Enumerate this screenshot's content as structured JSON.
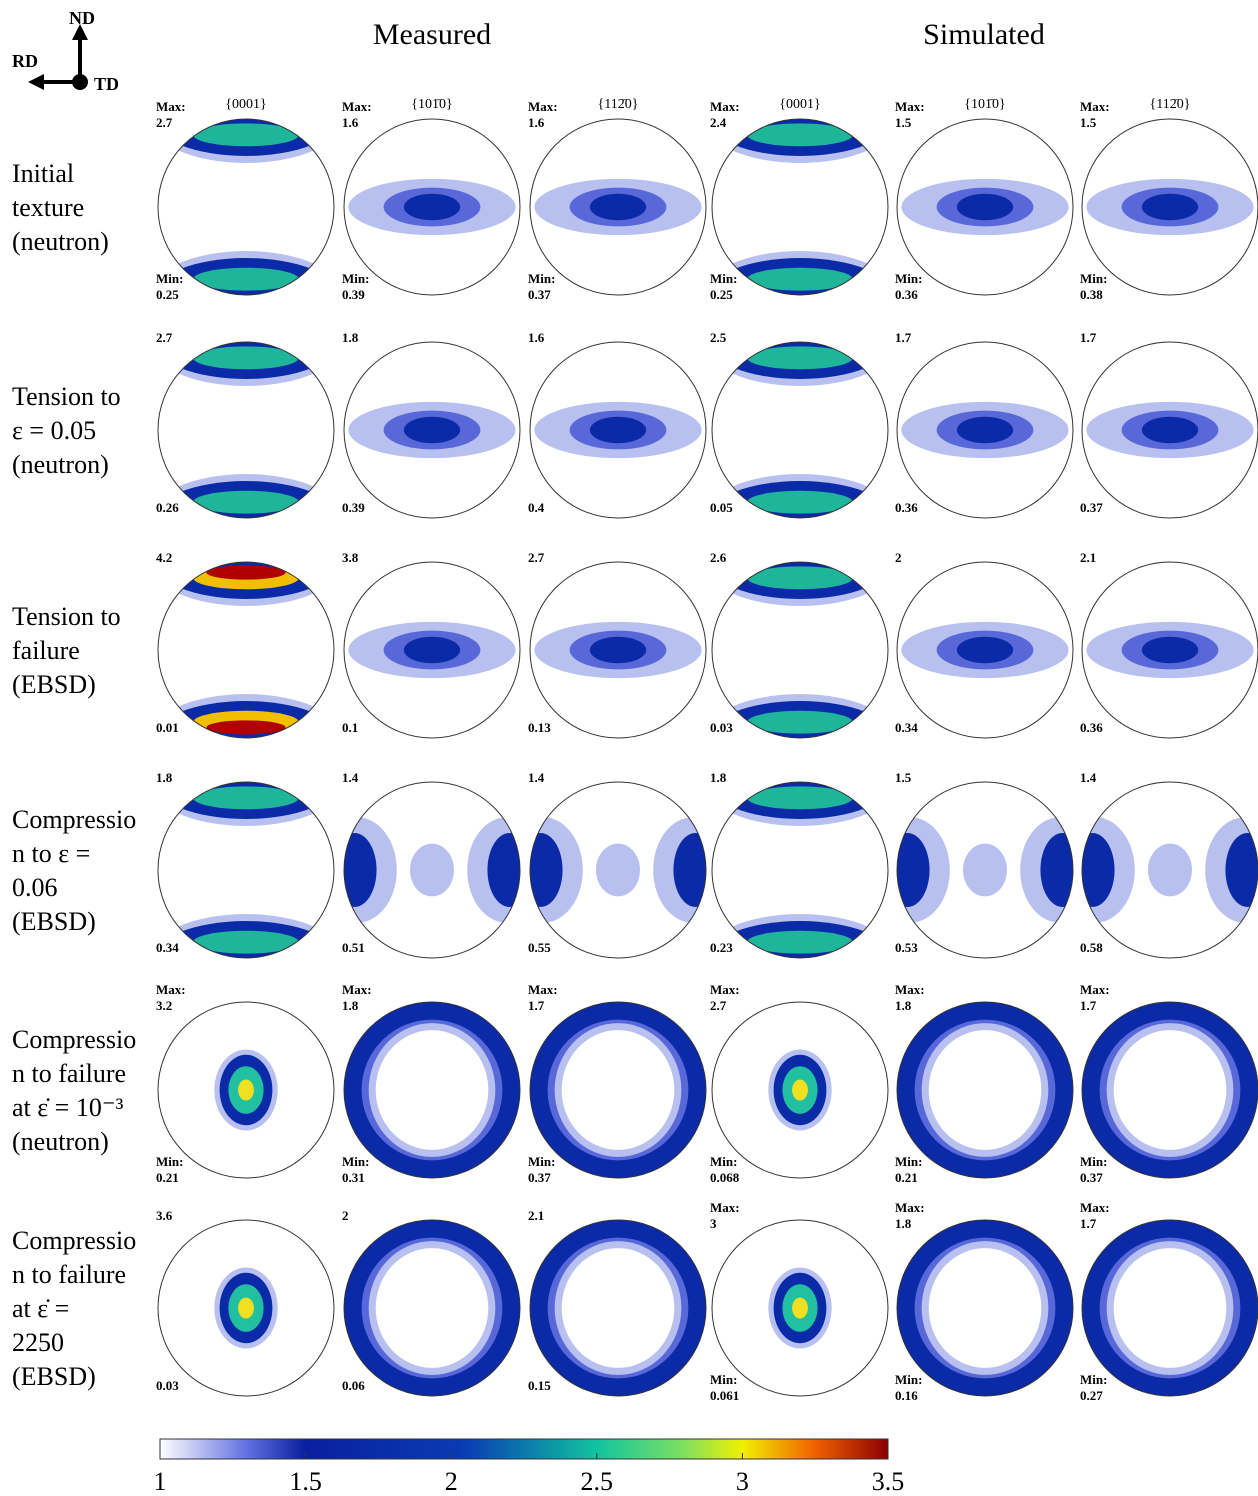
{
  "orientation": {
    "nd": "ND",
    "rd": "RD",
    "td": "TD"
  },
  "groups": [
    "Measured",
    "Simulated"
  ],
  "pole_labels": [
    "{0001}",
    "{101̄0}",
    "{112̄0}",
    "{0001}",
    "{101̄0}",
    "{112̄0}"
  ],
  "rows": [
    {
      "label": [
        "Initial",
        "texture",
        "(neutron)"
      ],
      "panels": [
        {
          "max_label": "Max:",
          "max": 2.7,
          "min_label": "Min:",
          "min": 0.25
        },
        {
          "max_label": "Max:",
          "max": 1.6,
          "min_label": "Min:",
          "min": 0.39
        },
        {
          "max_label": "Max:",
          "max": 1.6,
          "min_label": "Min:",
          "min": 0.37
        },
        {
          "max_label": "Max:",
          "max": 2.4,
          "min_label": "Min:",
          "min": 0.25
        },
        {
          "max_label": "Max:",
          "max": 1.5,
          "min_label": "Min:",
          "min": 0.36
        },
        {
          "max_label": "Max:",
          "max": 1.5,
          "min_label": "Min:",
          "min": 0.38
        }
      ]
    },
    {
      "label": [
        "Tension to",
        "ε = 0.05",
        "(neutron)"
      ],
      "panels": [
        {
          "max": 2.7,
          "min": 0.26
        },
        {
          "max": 1.8,
          "min": 0.39
        },
        {
          "max": 1.6,
          "min": 0.4
        },
        {
          "max": 2.5,
          "min": 0.05
        },
        {
          "max": 1.7,
          "min": 0.36
        },
        {
          "max": 1.7,
          "min": 0.37
        }
      ]
    },
    {
      "label": [
        "Tension to",
        "failure",
        "(EBSD)"
      ],
      "panels": [
        {
          "max": 4.2,
          "min": 0.01
        },
        {
          "max": 3.8,
          "min": 0.1
        },
        {
          "max": 2.7,
          "min": 0.13
        },
        {
          "max": 2.6,
          "min": 0.03
        },
        {
          "max": 2,
          "min": 0.34
        },
        {
          "max": 2.1,
          "min": 0.36
        }
      ]
    },
    {
      "label": [
        "Compressio",
        "n to ε =",
        "0.06",
        "(EBSD)"
      ],
      "panels": [
        {
          "max": 1.8,
          "min": 0.34
        },
        {
          "max": 1.4,
          "min": 0.51
        },
        {
          "max": 1.4,
          "min": 0.55
        },
        {
          "max": 1.8,
          "min": 0.23
        },
        {
          "max": 1.5,
          "min": 0.53
        },
        {
          "max": 1.4,
          "min": 0.58
        }
      ]
    },
    {
      "label": [
        "Compressio",
        "n to failure",
        "at ε̇ = 10⁻³",
        "(neutron)"
      ],
      "panels": [
        {
          "max_label": "Max:",
          "max": 3.2,
          "min_label": "Min:",
          "min": 0.21
        },
        {
          "max_label": "Max:",
          "max": 1.8,
          "min_label": "Min:",
          "min": 0.31
        },
        {
          "max_label": "Max:",
          "max": 1.7,
          "min_label": "Min:",
          "min": 0.37
        },
        {
          "max_label": "Max:",
          "max": 2.7,
          "min_label": "Min:",
          "min": 0.068
        },
        {
          "max_label": "Max:",
          "max": 1.8,
          "min_label": "Min:",
          "min": 0.21
        },
        {
          "max_label": "Max:",
          "max": 1.7,
          "min_label": "Min:",
          "min": 0.37
        }
      ]
    },
    {
      "label": [
        "Compressio",
        "n to failure",
        "at ε̇ =",
        "2250",
        "(EBSD)"
      ],
      "panels": [
        {
          "max": 3.6,
          "min": 0.03
        },
        {
          "max": 2,
          "min": 0.06
        },
        {
          "max": 2.1,
          "min": 0.15
        },
        {
          "max_label": "Max:",
          "max": 3,
          "min_label": "Min:",
          "min": 0.061
        },
        {
          "max_label": "Max:",
          "max": 1.8,
          "min_label": "Min:",
          "min": 0.16
        },
        {
          "max_label": "Max:",
          "max": 1.7,
          "min_label": "Min:",
          "min": 0.27
        }
      ]
    }
  ],
  "colorbar": {
    "lim": [
      1,
      3.5
    ],
    "ticks": [
      1,
      1.5,
      2,
      2.5,
      3,
      3.5
    ]
  }
}
